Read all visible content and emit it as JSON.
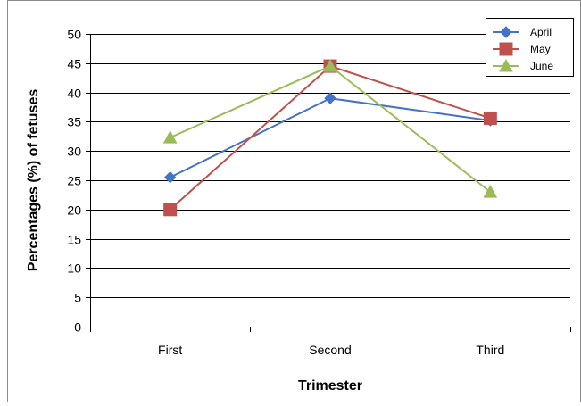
{
  "chart_data": {
    "type": "line",
    "title": "",
    "xlabel": "Trimester",
    "ylabel": "Percentages (%) of fetuses",
    "categories": [
      "First",
      "Second",
      "Third"
    ],
    "ylim": [
      0,
      50
    ],
    "yticks": [
      0,
      5,
      10,
      15,
      20,
      25,
      30,
      35,
      40,
      45,
      50
    ],
    "grid": "horizontal",
    "legend_position": "top-right",
    "series": [
      {
        "name": "April",
        "values": [
          25.5,
          39,
          35.2
        ],
        "color": "#4472C4",
        "marker": "diamond"
      },
      {
        "name": "May",
        "values": [
          20,
          44.5,
          35.6
        ],
        "color": "#C0504D",
        "marker": "square"
      },
      {
        "name": "June",
        "values": [
          32.3,
          44.5,
          23
        ],
        "color": "#9BBB59",
        "marker": "triangle"
      }
    ]
  }
}
